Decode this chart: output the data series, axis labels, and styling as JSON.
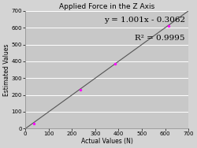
{
  "title": "Applied Force in the Z Axis",
  "xlabel": "Actual Values (N)",
  "ylabel": "Estimated Values",
  "xlim": [
    0,
    700
  ],
  "ylim": [
    0,
    700
  ],
  "xticks": [
    0,
    100,
    200,
    300,
    400,
    500,
    600,
    700
  ],
  "yticks": [
    0,
    100,
    200,
    300,
    400,
    500,
    600,
    700
  ],
  "data_points": [
    [
      35,
      28
    ],
    [
      235,
      232
    ],
    [
      385,
      388
    ],
    [
      615,
      612
    ]
  ],
  "slope": 1.001,
  "intercept": -0.3062,
  "line_color": "#555555",
  "point_color": "#ff00ff",
  "fig_bg_color": "#d4d4d4",
  "plot_bg_color": "#c8c8c8",
  "grid_color": "#ffffff",
  "equation_text": "y = 1.001x - 0.3062",
  "r2_text": "R² = 0.9995",
  "title_fontsize": 6.5,
  "label_fontsize": 5.5,
  "tick_fontsize": 5,
  "annot_fontsize": 7.5
}
